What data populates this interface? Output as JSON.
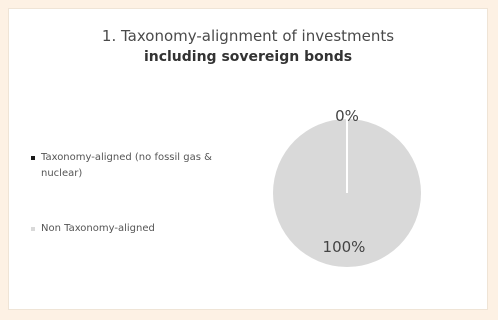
{
  "colors": {
    "page_background": "#fdf1e4",
    "card_background": "#ffffff",
    "aligned": "#1a1a1a",
    "non_aligned": "#d9d9d9",
    "slice_border": "#ffffff"
  },
  "chart_data": {
    "type": "pie",
    "title": "1. Taxonomy-alignment of investments",
    "subtitle": "including sovereign bonds",
    "legend_position": "left",
    "slices": [
      {
        "name": "Taxonomy-aligned (no fossil gas & nuclear)",
        "value": 0,
        "label": "0%",
        "color": "#1a1a1a"
      },
      {
        "name": "Non Taxonomy-aligned",
        "value": 100,
        "label": "100%",
        "color": "#d9d9d9"
      }
    ]
  }
}
